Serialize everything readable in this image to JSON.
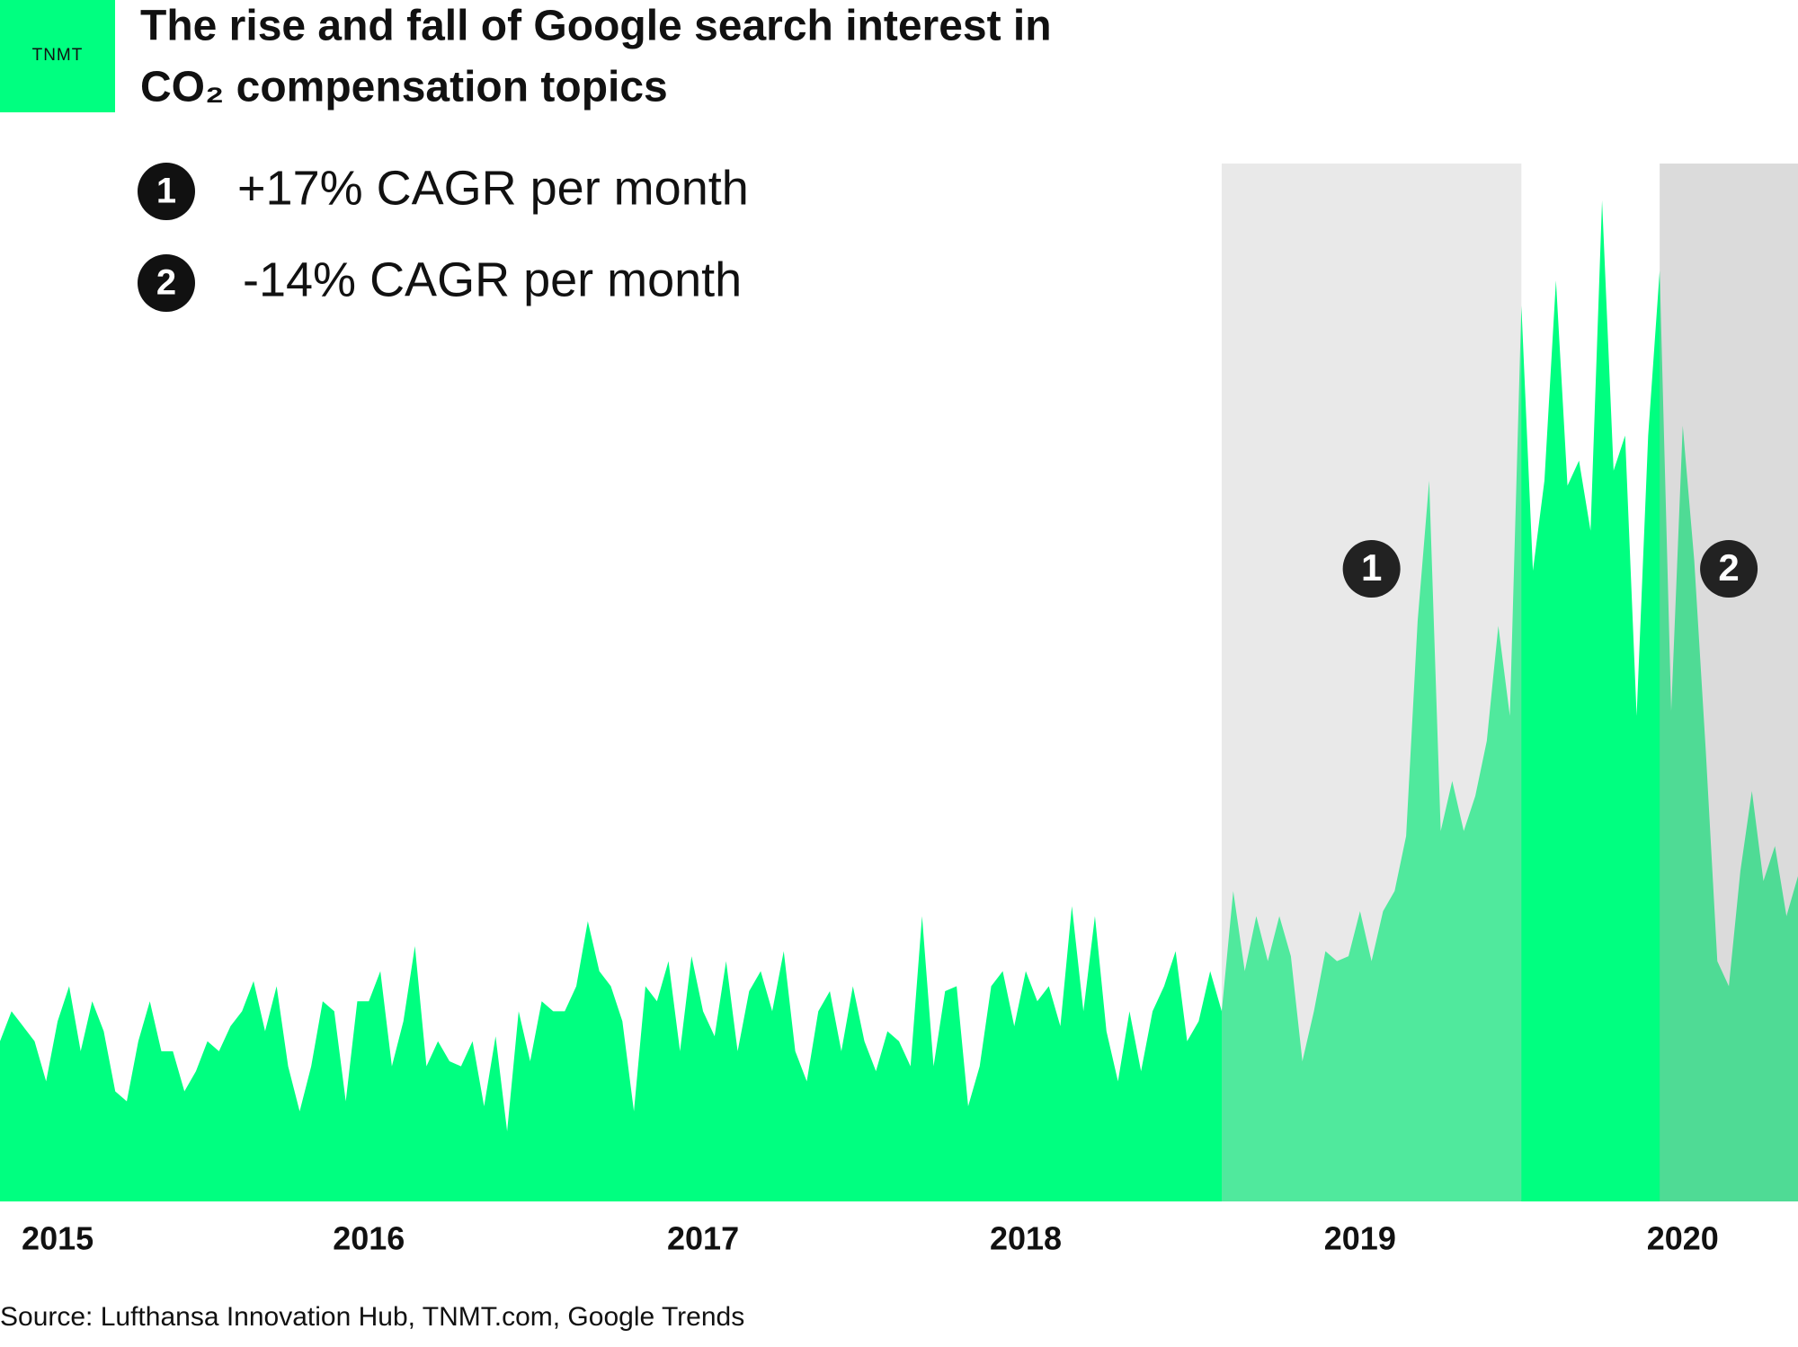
{
  "chart_data": {
    "type": "area",
    "logo": "TNMT",
    "title": [
      "The rise and fall of Google search interest in",
      "CO₂ compensation topics"
    ],
    "notes": [
      {
        "label": "1",
        "text": "+17% CAGR per month"
      },
      {
        "label": "2",
        "text": "-14% CAGR per month"
      }
    ],
    "highlights": [
      {
        "label": "1",
        "from": 106,
        "to": 132
      },
      {
        "label": "2",
        "from": 144,
        "to": 156
      }
    ],
    "source": "Source: Lufthansa Innovation Hub, TNMT.com, Google Trends",
    "color": "#00ff80",
    "ylim": [
      0,
      100
    ],
    "categories": [
      null,
      null,
      null,
      null,
      null,
      "2015",
      null,
      null,
      null,
      null,
      null,
      null,
      null,
      null,
      null,
      null,
      null,
      null,
      null,
      null,
      null,
      null,
      null,
      null,
      null,
      null,
      null,
      null,
      null,
      null,
      null,
      null,
      "2016",
      null,
      null,
      null,
      null,
      null,
      null,
      null,
      null,
      null,
      null,
      null,
      null,
      null,
      null,
      null,
      null,
      null,
      null,
      null,
      null,
      null,
      null,
      null,
      null,
      null,
      null,
      null,
      null,
      "2017",
      null,
      null,
      null,
      null,
      null,
      null,
      null,
      null,
      null,
      null,
      null,
      null,
      null,
      null,
      null,
      null,
      null,
      null,
      null,
      null,
      null,
      null,
      null,
      null,
      null,
      null,
      null,
      "2018",
      null,
      null,
      null,
      null,
      null,
      null,
      null,
      null,
      null,
      null,
      null,
      null,
      null,
      null,
      null,
      null,
      null,
      null,
      null,
      null,
      null,
      null,
      null,
      null,
      null,
      null,
      null,
      null,
      "2019",
      null,
      null,
      null,
      null,
      null,
      null,
      null,
      null,
      null,
      null,
      null,
      null,
      null,
      null,
      null,
      null,
      null,
      null,
      null,
      null,
      null,
      null,
      null,
      null,
      null,
      null,
      null,
      "2020",
      null,
      null,
      null,
      null,
      null,
      null,
      null,
      null,
      null,
      null
    ],
    "values": [
      16,
      19,
      17.5,
      16,
      12,
      18,
      21.5,
      15,
      20,
      17,
      11,
      10,
      16,
      20,
      15,
      15,
      11,
      13,
      16,
      15,
      17.5,
      19,
      22,
      17,
      21.5,
      13.5,
      9,
      13.5,
      20,
      19,
      10,
      20,
      20,
      23,
      13.5,
      18,
      25.5,
      13.5,
      16,
      14,
      13.5,
      16,
      9.5,
      16.5,
      7,
      19,
      14,
      20,
      19,
      19,
      21.5,
      28,
      23,
      21.5,
      18,
      9,
      21.5,
      20,
      24,
      15,
      24.5,
      19,
      16.5,
      24,
      15,
      21,
      23,
      19,
      25,
      15,
      12,
      19,
      21,
      15,
      21.5,
      16,
      13,
      17,
      16,
      13.5,
      28.5,
      13.5,
      21,
      21.5,
      9.5,
      13.5,
      21.5,
      23,
      17.5,
      23,
      20,
      21.5,
      17.5,
      29.5,
      19,
      28.5,
      17,
      12,
      19,
      13,
      19,
      21.5,
      25,
      16,
      18,
      23,
      19,
      31,
      23,
      28.5,
      24,
      28.5,
      24.5,
      14,
      19,
      25,
      24,
      24.5,
      29,
      24,
      29,
      31,
      36.5,
      58,
      72,
      37,
      42,
      37,
      40.5,
      46,
      57.5,
      48.5,
      89.5,
      63,
      72,
      92,
      71.5,
      74,
      67,
      100,
      73,
      76.5,
      48.5,
      76.5,
      93,
      49,
      77.5,
      64,
      45,
      24,
      21.5,
      33,
      41,
      32,
      35.5,
      28.5,
      32.5
    ]
  }
}
